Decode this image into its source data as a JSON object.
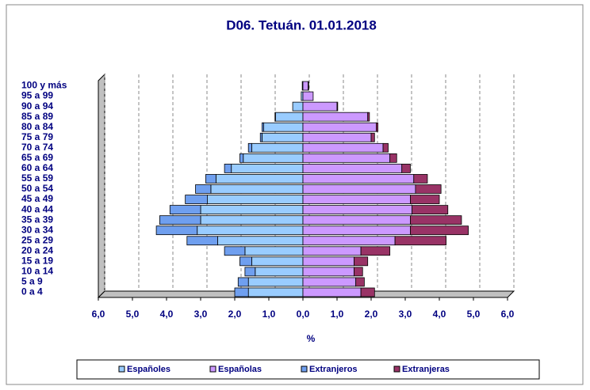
{
  "chart_data": {
    "type": "pyramid",
    "title": "D06. Tetuán. 01.01.2018",
    "x_label": "%",
    "categories": [
      "0 a 4",
      "5 a 9",
      "10 a 14",
      "15 a 19",
      "20 a 24",
      "25 a 29",
      "30 a 34",
      "35 a 39",
      "40 a 44",
      "45 a 49",
      "50 a 54",
      "55 a 59",
      "60 a 64",
      "65 a 69",
      "70 a 74",
      "75 a 79",
      "80 a 84",
      "85 a 89",
      "90 a 94",
      "95 a 99",
      "100 y más"
    ],
    "series": [
      {
        "name": "Españoles",
        "color": "#99ccff",
        "side": "left",
        "values": [
          1.6,
          1.6,
          1.4,
          1.5,
          1.7,
          2.5,
          3.1,
          3.0,
          3.0,
          2.8,
          2.7,
          2.55,
          2.1,
          1.75,
          1.5,
          1.2,
          1.15,
          0.8,
          0.3,
          0.05,
          0.02
        ]
      },
      {
        "name": "Españolas",
        "color": "#cc99ff",
        "side": "right",
        "values": [
          1.7,
          1.55,
          1.5,
          1.5,
          1.7,
          2.7,
          3.15,
          3.15,
          3.2,
          3.15,
          3.3,
          3.25,
          2.9,
          2.55,
          2.35,
          2.0,
          2.15,
          1.9,
          1.0,
          0.3,
          0.15
        ]
      },
      {
        "name": "Extranjeros",
        "color": "#6f9fef",
        "side": "left",
        "values": [
          0.4,
          0.3,
          0.3,
          0.35,
          0.6,
          0.9,
          1.2,
          1.2,
          0.9,
          0.65,
          0.45,
          0.3,
          0.2,
          0.1,
          0.1,
          0.05,
          0.05,
          0.02,
          0,
          0,
          0
        ]
      },
      {
        "name": "Extranjeras",
        "color": "#993366",
        "side": "right",
        "values": [
          0.4,
          0.25,
          0.25,
          0.4,
          0.85,
          1.5,
          1.7,
          1.5,
          1.05,
          0.85,
          0.75,
          0.4,
          0.25,
          0.2,
          0.15,
          0.1,
          0.05,
          0.05,
          0.02,
          0,
          0.02
        ]
      }
    ],
    "xlim": [
      -6,
      6
    ],
    "xticks": [
      {
        "value": -6,
        "label": "6,0"
      },
      {
        "value": -5,
        "label": "5,0"
      },
      {
        "value": -4,
        "label": "4,0"
      },
      {
        "value": -3,
        "label": "3,0"
      },
      {
        "value": -2,
        "label": "2,0"
      },
      {
        "value": -1,
        "label": "1,0"
      },
      {
        "value": 0,
        "label": "0,0"
      },
      {
        "value": 1,
        "label": "1,0"
      },
      {
        "value": 2,
        "label": "2,0"
      },
      {
        "value": 3,
        "label": "3,0"
      },
      {
        "value": 4,
        "label": "4,0"
      },
      {
        "value": 5,
        "label": "5,0"
      },
      {
        "value": 6,
        "label": "6,0"
      }
    ],
    "grid": true,
    "legend": "bottom"
  }
}
